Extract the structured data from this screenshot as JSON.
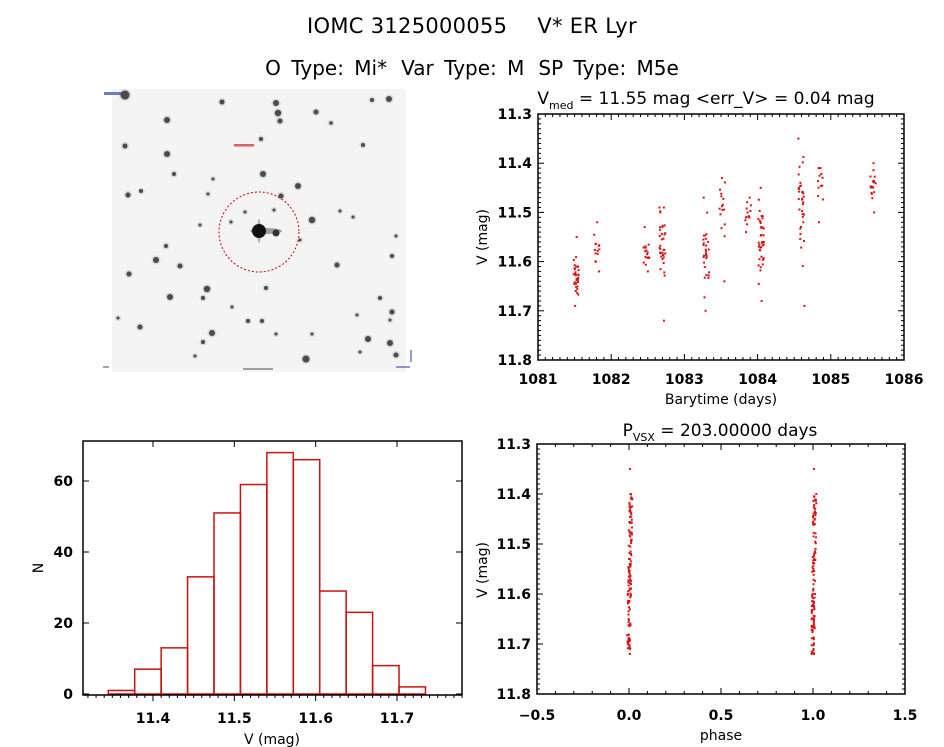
{
  "header": {
    "title_id": "IOMC 3125000055",
    "title_name": "V* ER Lyr",
    "o_type_label": "O Type: Mi*",
    "var_type_label": "Var Type: M",
    "sp_type_label": "SP Type: M5e"
  },
  "image_panel": {
    "description": "Finding chart star field (inverted grayscale) with target circled in red dashed circle",
    "marker_color": "#cc0000"
  },
  "colors": {
    "data": "#dd1111",
    "axes": "#000000",
    "background": "#ffffff"
  },
  "chart_data": [
    {
      "name": "light-curve",
      "type": "scatter",
      "title_main": "V",
      "title_sub": "med",
      "title_rest": " = 11.55 mag <err_V> = 0.04 mag",
      "xlabel": "Barytime (days)",
      "ylabel": "V (mag)",
      "xlim": [
        1081,
        1086
      ],
      "ylim": [
        11.8,
        11.3
      ],
      "y_inverted": true,
      "xticks": [
        "1081",
        "1082",
        "1083",
        "1084",
        "1085",
        "1086"
      ],
      "yticks": [
        "11.3",
        "11.4",
        "11.5",
        "11.6",
        "11.7",
        "11.8"
      ],
      "clusters": [
        {
          "x": 1081.52,
          "ymin": 11.55,
          "ymax": 11.69,
          "center": 11.63,
          "n": 34
        },
        {
          "x": 1081.8,
          "ymin": 11.52,
          "ymax": 11.62,
          "center": 11.58,
          "n": 14
        },
        {
          "x": 1082.48,
          "ymin": 11.53,
          "ymax": 11.62,
          "center": 11.58,
          "n": 16
        },
        {
          "x": 1082.7,
          "ymin": 11.49,
          "ymax": 11.72,
          "center": 11.56,
          "n": 34
        },
        {
          "x": 1083.3,
          "ymin": 11.47,
          "ymax": 11.7,
          "center": 11.58,
          "n": 30
        },
        {
          "x": 1083.52,
          "ymin": 11.43,
          "ymax": 11.64,
          "center": 11.5,
          "n": 16
        },
        {
          "x": 1083.87,
          "ymin": 11.47,
          "ymax": 11.54,
          "center": 11.5,
          "n": 14
        },
        {
          "x": 1084.05,
          "ymin": 11.45,
          "ymax": 11.68,
          "center": 11.55,
          "n": 40
        },
        {
          "x": 1084.6,
          "ymin": 11.35,
          "ymax": 11.69,
          "center": 11.5,
          "n": 34
        },
        {
          "x": 1084.86,
          "ymin": 11.41,
          "ymax": 11.52,
          "center": 11.44,
          "n": 12
        },
        {
          "x": 1085.58,
          "ymin": 11.4,
          "ymax": 11.5,
          "center": 11.44,
          "n": 18
        }
      ]
    },
    {
      "name": "histogram",
      "type": "bar",
      "xlabel": "V (mag)",
      "ylabel": "N",
      "xlim": [
        11.32,
        11.78
      ],
      "ylim": [
        0,
        72
      ],
      "xticks": [
        "11.4",
        "11.5",
        "11.6",
        "11.7"
      ],
      "yticks": [
        "0",
        "20",
        "40",
        "60"
      ],
      "bin_edges": [
        11.345,
        11.3775,
        11.41,
        11.4425,
        11.475,
        11.5075,
        11.54,
        11.5725,
        11.605,
        11.6375,
        11.67,
        11.7025,
        11.735
      ],
      "values": [
        1,
        7,
        13,
        33,
        51,
        59,
        68,
        66,
        29,
        23,
        8,
        2
      ]
    },
    {
      "name": "phased-curve",
      "type": "scatter",
      "title_main": "P",
      "title_sub": "VSX",
      "title_rest": " = 203.00000 days",
      "xlabel": "phase",
      "ylabel": "V (mag)",
      "xlim": [
        -0.5,
        1.5
      ],
      "ylim": [
        11.8,
        11.3
      ],
      "y_inverted": true,
      "xticks": [
        "−0.5",
        "0.0",
        "0.5",
        "1.0",
        "1.5"
      ],
      "yticks": [
        "11.3",
        "11.4",
        "11.5",
        "11.6",
        "11.7",
        "11.8"
      ],
      "clusters": [
        {
          "x": 0.005,
          "ymin": 11.4,
          "ymax": 11.72,
          "center": 11.55,
          "outlier": 11.35,
          "n": 120
        },
        {
          "x": 1.005,
          "ymin": 11.4,
          "ymax": 11.72,
          "center": 11.55,
          "outlier": 11.35,
          "n": 120
        }
      ]
    }
  ]
}
